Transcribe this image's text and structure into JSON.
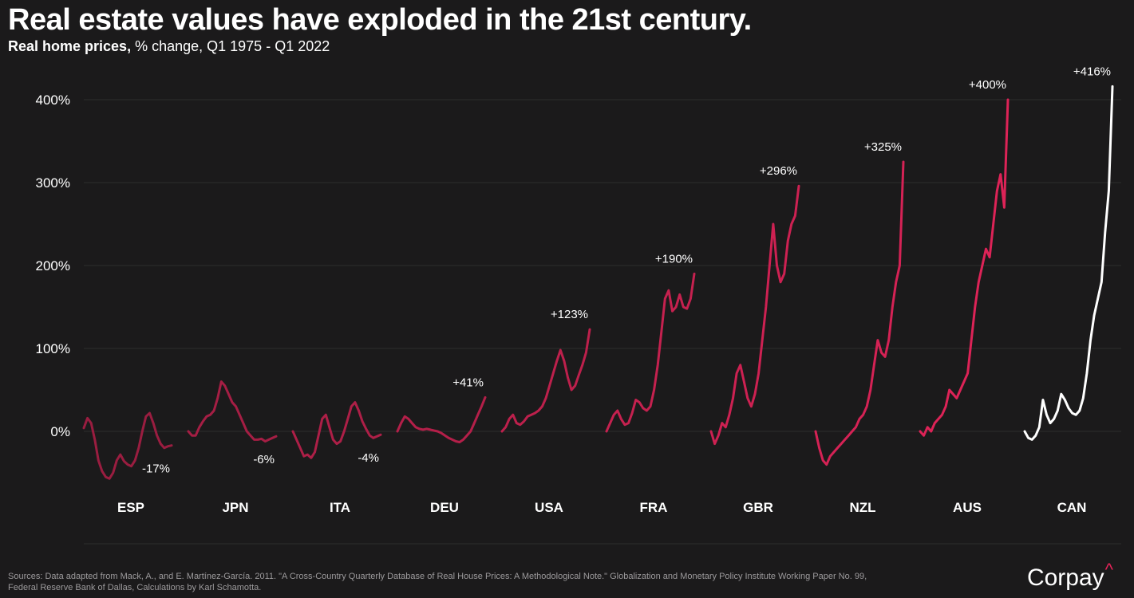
{
  "title": "Real estate values have exploded in the 21st century.",
  "subtitle": {
    "strong": "Real home prices,",
    "rest": " % change, Q1 1975 - Q1 2022"
  },
  "footer": {
    "line1": "Sources: Data adapted from Mack, A., and E. Martínez-García. 2011. \"A Cross-Country Quarterly Database of Real House Prices: A Methodological Note.\" Globalization and Monetary Policy Institute Working Paper No. 99,",
    "line2": "Federal Reserve Bank of Dallas, Calculations by Karl Schamotta."
  },
  "brand": {
    "name": "Corpay",
    "mark": "^"
  },
  "colors": {
    "background": "#1b1a1b",
    "text": "#ffffff",
    "muted": "#9c9a9c",
    "grid": "#2e2d2e",
    "highlight": "#ffffff",
    "series_shades": [
      "#9a1d40",
      "#a51e44",
      "#ad1f47",
      "#b41f49",
      "#bd204c",
      "#c5214f",
      "#cd2152",
      "#d52255",
      "#dd2357"
    ]
  },
  "chart_data": {
    "type": "line",
    "layout": "small-multiples",
    "x_range": [
      "Q1 1975",
      "Q1 2022"
    ],
    "ylim": [
      -60,
      420
    ],
    "y_ticks": [
      0,
      100,
      200,
      300,
      400
    ],
    "y_tick_labels": [
      "0%",
      "100%",
      "200%",
      "300%",
      "400%"
    ],
    "grid": true,
    "series": [
      {
        "name": "ESP",
        "end_label": "-17%",
        "highlight": false,
        "values": [
          4,
          16,
          10,
          -10,
          -35,
          -48,
          -55,
          -57,
          -50,
          -35,
          -28,
          -36,
          -40,
          -42,
          -35,
          -20,
          0,
          18,
          22,
          10,
          -5,
          -15,
          -20,
          -18,
          -17
        ]
      },
      {
        "name": "JPN",
        "end_label": "-6%",
        "highlight": false,
        "values": [
          0,
          -5,
          -5,
          5,
          12,
          18,
          20,
          25,
          40,
          60,
          55,
          45,
          35,
          30,
          20,
          10,
          0,
          -5,
          -10,
          -10,
          -9,
          -12,
          -10,
          -8,
          -6
        ]
      },
      {
        "name": "ITA",
        "end_label": "-4%",
        "highlight": false,
        "values": [
          0,
          -10,
          -20,
          -30,
          -28,
          -32,
          -25,
          -5,
          15,
          20,
          5,
          -10,
          -15,
          -12,
          0,
          15,
          30,
          35,
          25,
          12,
          3,
          -5,
          -8,
          -6,
          -4
        ]
      },
      {
        "name": "DEU",
        "end_label": "+41%",
        "highlight": false,
        "values": [
          0,
          10,
          18,
          15,
          10,
          5,
          3,
          2,
          3,
          2,
          1,
          0,
          -2,
          -5,
          -8,
          -10,
          -12,
          -13,
          -10,
          -5,
          0,
          10,
          20,
          30,
          41
        ]
      },
      {
        "name": "USA",
        "end_label": "+123%",
        "highlight": false,
        "values": [
          0,
          5,
          15,
          20,
          10,
          8,
          12,
          18,
          20,
          22,
          25,
          30,
          40,
          55,
          70,
          85,
          98,
          85,
          65,
          50,
          55,
          68,
          80,
          95,
          123
        ]
      },
      {
        "name": "FRA",
        "end_label": "+190%",
        "highlight": false,
        "values": [
          0,
          10,
          20,
          25,
          15,
          8,
          10,
          22,
          38,
          35,
          28,
          25,
          30,
          50,
          80,
          120,
          160,
          170,
          145,
          150,
          165,
          150,
          148,
          160,
          190
        ]
      },
      {
        "name": "GBR",
        "end_label": "+296%",
        "highlight": false,
        "values": [
          0,
          -15,
          -5,
          10,
          5,
          20,
          40,
          70,
          80,
          60,
          40,
          30,
          45,
          70,
          110,
          150,
          200,
          250,
          200,
          180,
          190,
          230,
          250,
          260,
          296
        ]
      },
      {
        "name": "NZL",
        "end_label": "+325%",
        "highlight": false,
        "values": [
          0,
          -20,
          -35,
          -40,
          -30,
          -25,
          -20,
          -15,
          -10,
          -5,
          0,
          5,
          15,
          20,
          30,
          50,
          80,
          110,
          95,
          90,
          110,
          150,
          180,
          200,
          325
        ]
      },
      {
        "name": "AUS",
        "end_label": "+400%",
        "highlight": false,
        "values": [
          0,
          -5,
          5,
          0,
          10,
          15,
          20,
          30,
          50,
          45,
          40,
          50,
          60,
          70,
          110,
          150,
          180,
          200,
          220,
          210,
          250,
          290,
          310,
          270,
          400
        ]
      },
      {
        "name": "CAN",
        "end_label": "+416%",
        "highlight": true,
        "values": [
          0,
          -8,
          -10,
          -5,
          5,
          38,
          20,
          10,
          15,
          25,
          45,
          38,
          28,
          22,
          20,
          25,
          40,
          70,
          110,
          140,
          160,
          180,
          240,
          290,
          416
        ]
      }
    ]
  }
}
